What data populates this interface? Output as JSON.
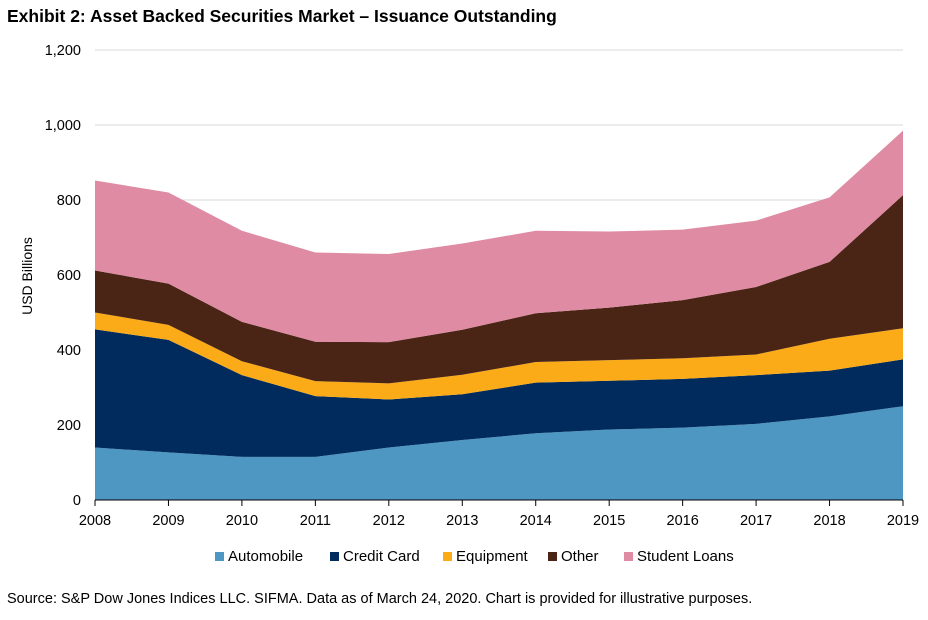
{
  "title": "Exhibit 2: Asset Backed Securities Market – Issuance Outstanding",
  "source": "Source: S&P Dow Jones Indices LLC. SIFMA. Data as of March 24, 2020. Chart is provided for illustrative purposes.",
  "chart_data": {
    "type": "area",
    "stacked": true,
    "title": "Exhibit 2: Asset Backed Securities Market – Issuance Outstanding",
    "xlabel": "",
    "ylabel": "USD Billions",
    "ylim": [
      0,
      1200
    ],
    "yticks": [
      0,
      200,
      400,
      600,
      800,
      1000,
      1200
    ],
    "ytick_labels": [
      "0",
      "200",
      "400",
      "600",
      "800",
      "1,000",
      "1,200"
    ],
    "grid": "horizontal",
    "legend_position": "bottom",
    "categories": [
      "2008",
      "2009",
      "2010",
      "2011",
      "2012",
      "2013",
      "2014",
      "2015",
      "2016",
      "2017",
      "2018",
      "2019"
    ],
    "series": [
      {
        "name": "Automobile",
        "color": "#4e97c2",
        "values": [
          140,
          127,
          115,
          115,
          140,
          160,
          178,
          188,
          193,
          203,
          223,
          250
        ]
      },
      {
        "name": "Credit Card",
        "color": "#002b5c",
        "values": [
          315,
          300,
          218,
          162,
          128,
          122,
          135,
          130,
          130,
          130,
          122,
          125
        ]
      },
      {
        "name": "Equipment",
        "color": "#fbab18",
        "values": [
          45,
          40,
          37,
          40,
          43,
          52,
          55,
          55,
          55,
          55,
          85,
          83
        ]
      },
      {
        "name": "Other",
        "color": "#4a2414",
        "values": [
          112,
          110,
          105,
          105,
          110,
          120,
          130,
          140,
          155,
          180,
          205,
          355
        ]
      },
      {
        "name": "Student Loans",
        "color": "#de8ba3",
        "values": [
          240,
          243,
          243,
          238,
          235,
          230,
          220,
          203,
          188,
          177,
          172,
          172
        ]
      }
    ]
  }
}
